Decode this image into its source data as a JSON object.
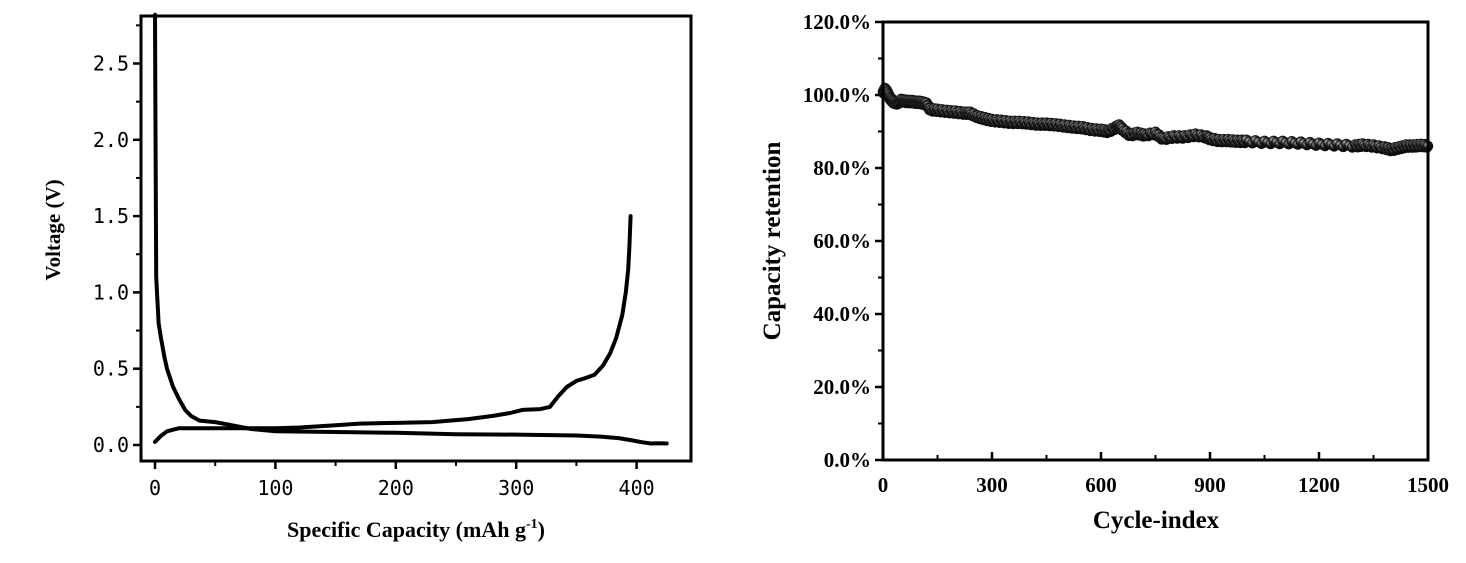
{
  "chart_data": [
    {
      "type": "line",
      "xlabel": "Specific Capacity (mAh g",
      "xlabel_sup": "-1",
      "xlabel_end": ")",
      "ylabel": "Voltage (V)",
      "xlim": [
        -12,
        446
      ],
      "ylim": [
        -0.1,
        2.82
      ],
      "xticks": [
        "0",
        "100",
        "200",
        "300",
        "400"
      ],
      "yticks": [
        "0.0",
        "0.5",
        "1.0",
        "1.5",
        "2.0",
        "2.5"
      ],
      "grid": false,
      "series": [
        {
          "x": [
            0,
            0.3,
            1,
            2,
            3,
            5,
            8,
            10,
            15,
            20,
            25,
            30,
            37,
            50,
            60,
            70,
            80,
            100,
            150,
            200,
            250,
            300,
            350,
            370,
            385,
            395,
            405,
            412,
            418,
            425
          ],
          "y": [
            2.82,
            2.2,
            1.1,
            0.95,
            0.8,
            0.7,
            0.57,
            0.5,
            0.38,
            0.3,
            0.23,
            0.19,
            0.16,
            0.15,
            0.135,
            0.12,
            0.105,
            0.09,
            0.085,
            0.08,
            0.07,
            0.068,
            0.062,
            0.055,
            0.045,
            0.032,
            0.018,
            0.01,
            0.012,
            0.01
          ]
        },
        {
          "x": [
            0,
            5,
            10,
            15,
            20,
            30,
            50,
            80,
            100,
            120,
            150,
            170,
            200,
            230,
            260,
            280,
            295,
            305,
            320,
            328,
            335,
            342,
            350,
            358,
            365,
            372,
            378,
            383,
            388,
            391,
            393,
            394,
            395
          ],
          "y": [
            0.02,
            0.06,
            0.09,
            0.1,
            0.11,
            0.11,
            0.11,
            0.11,
            0.11,
            0.115,
            0.13,
            0.14,
            0.145,
            0.15,
            0.17,
            0.19,
            0.21,
            0.23,
            0.235,
            0.25,
            0.32,
            0.38,
            0.42,
            0.44,
            0.46,
            0.52,
            0.6,
            0.7,
            0.85,
            1.0,
            1.15,
            1.3,
            1.5
          ]
        }
      ]
    },
    {
      "type": "scatter",
      "xlabel": "Cycle-index",
      "ylabel": "Capacity retention",
      "xlim": [
        0,
        1500
      ],
      "ylim": [
        0,
        120
      ],
      "xticks": [
        "0",
        "300",
        "600",
        "900",
        "1200",
        "1500"
      ],
      "yticks": [
        "0.0%",
        "20.0%",
        "40.0%",
        "60.0%",
        "80.0%",
        "100.0%",
        "120.0%"
      ],
      "grid": false,
      "marker_color": "#1a1a1a",
      "x": [
        0,
        5,
        10,
        15,
        20,
        25,
        30,
        40,
        50,
        60,
        70,
        80,
        90,
        100,
        110,
        120,
        130,
        150,
        175,
        200,
        225,
        240,
        260,
        280,
        300,
        325,
        350,
        375,
        400,
        425,
        450,
        475,
        500,
        525,
        550,
        575,
        600,
        620,
        640,
        650,
        660,
        680,
        700,
        720,
        750,
        770,
        800,
        830,
        860,
        890,
        900,
        925,
        950,
        975,
        1000,
        1050,
        1100,
        1150,
        1200,
        1250,
        1300,
        1320,
        1350,
        1380,
        1400,
        1420,
        1440,
        1460,
        1480,
        1500
      ],
      "y": [
        100.5,
        101.5,
        101,
        100,
        99,
        98.5,
        98,
        97.8,
        98.5,
        98.3,
        98.2,
        98.2,
        98,
        98,
        97.8,
        97.5,
        96,
        95.8,
        95.5,
        95.3,
        95,
        95,
        94,
        93.5,
        93,
        92.8,
        92.5,
        92.5,
        92.3,
        92,
        92,
        91.8,
        91.5,
        91.2,
        91,
        90.5,
        90.3,
        90,
        91,
        91.5,
        90.5,
        89,
        89.5,
        89,
        89.5,
        88,
        88.5,
        88.5,
        89,
        88.5,
        88,
        87.5,
        87.5,
        87.3,
        87.3,
        87,
        87,
        86.8,
        86.5,
        86.3,
        86,
        86.3,
        86,
        85.5,
        85,
        85.5,
        86,
        86,
        86.2,
        86
      ]
    }
  ]
}
